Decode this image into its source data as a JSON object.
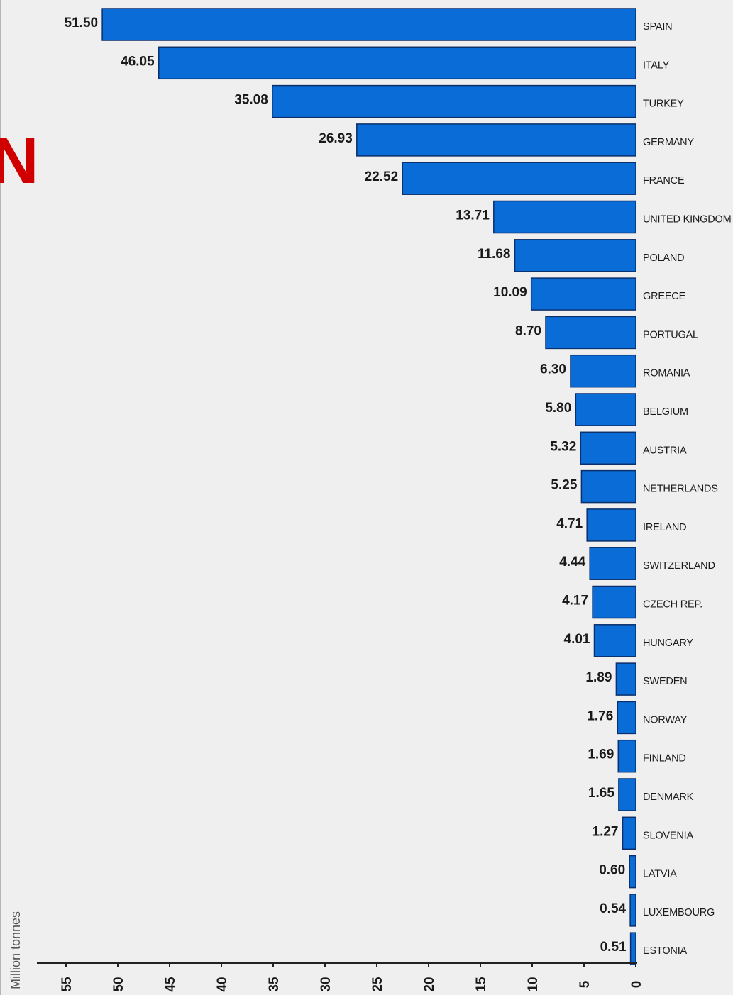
{
  "fragment_text": "N",
  "colors": {
    "bar": "#0a6cd6",
    "bar_stroke": "#0a2f6b",
    "background": "#efefef",
    "fragment": "#d10000"
  },
  "chart_data": {
    "type": "bar",
    "orientation": "horizontal",
    "ylabel": "Million tonnes",
    "xlim": [
      0,
      55
    ],
    "axis_direction": "reversed",
    "ticks": [
      "0",
      "5",
      "10",
      "15",
      "20",
      "25",
      "30",
      "35",
      "40",
      "45",
      "50",
      "55"
    ],
    "categories": [
      "SPAIN",
      "ITALY",
      "TURKEY",
      "GERMANY",
      "FRANCE",
      "UNITED KINGDOM",
      "POLAND",
      "GREECE",
      "PORTUGAL",
      "ROMANIA",
      "BELGIUM",
      "AUSTRIA",
      "NETHERLANDS",
      "IRELAND",
      "SWITZERLAND",
      "CZECH REP.",
      "HUNGARY",
      "SWEDEN",
      "NORWAY",
      "FINLAND",
      "DENMARK",
      "SLOVENIA",
      "LATVIA",
      "LUXEMBOURG",
      "ESTONIA"
    ],
    "values": [
      51.5,
      46.05,
      35.08,
      26.93,
      22.52,
      13.71,
      11.68,
      10.09,
      8.7,
      6.3,
      5.8,
      5.32,
      5.25,
      4.71,
      4.44,
      4.17,
      4.01,
      1.89,
      1.76,
      1.69,
      1.65,
      1.27,
      0.6,
      0.54,
      0.51
    ],
    "value_labels": [
      "51.50",
      "46.05",
      "35.08",
      "26.93",
      "22.52",
      "13.71",
      "11.68",
      "10.09",
      "8.70",
      "6.30",
      "5.80",
      "5.32",
      "5.25",
      "4.71",
      "4.44",
      "4.17",
      "4.01",
      "1.89",
      "1.76",
      "1.69",
      "1.65",
      "1.27",
      "0.60",
      "0.54",
      "0.51"
    ],
    "grid": false,
    "legend": "none"
  }
}
